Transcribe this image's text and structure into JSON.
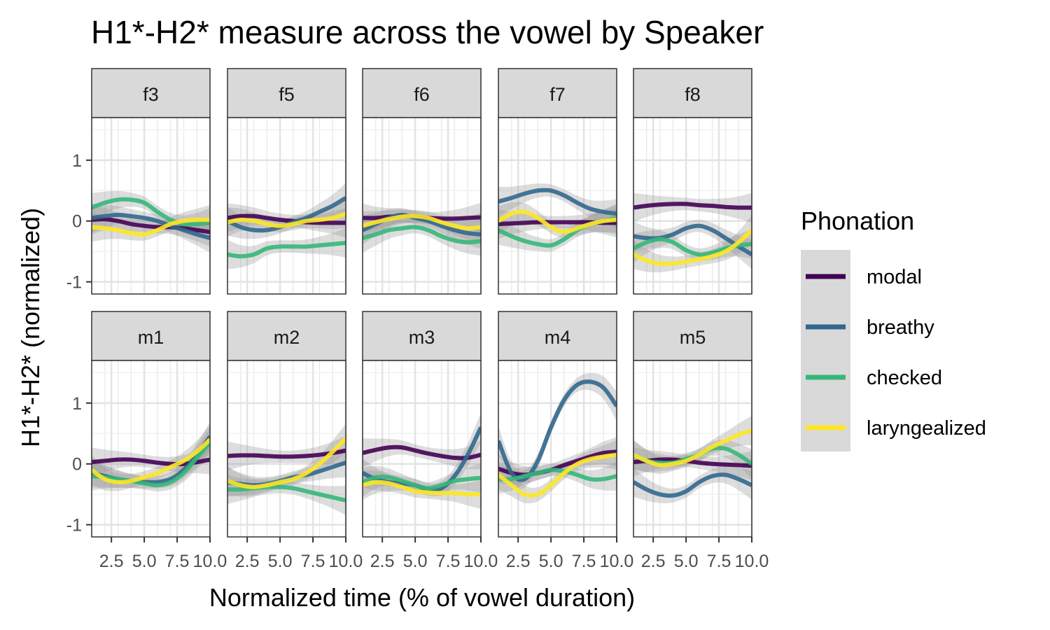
{
  "chart_data": {
    "type": "line",
    "title": "H1*-H2* measure across the vowel by Speaker",
    "xlabel": "Normalized time (% of vowel duration)",
    "ylabel": "H1*-H2* (normalized)",
    "x_ticks": [
      2.5,
      5.0,
      7.5,
      10.0
    ],
    "x_tick_labels": [
      "2.5",
      "5.0",
      "7.5",
      "10.0"
    ],
    "y_ticks": [
      -1,
      0,
      1
    ],
    "y_tick_labels": [
      "-1",
      "0",
      "1"
    ],
    "xlim": [
      1,
      10
    ],
    "ylim": [
      -1.2,
      1.7
    ],
    "grid": true,
    "legend": {
      "title": "Phonation",
      "placement": "right",
      "entries": [
        {
          "name": "modal",
          "color": "#440154"
        },
        {
          "name": "breathy",
          "color": "#31688E"
        },
        {
          "name": "checked",
          "color": "#35B779"
        },
        {
          "name": "laryngealized",
          "color": "#FDE725"
        }
      ]
    },
    "x": [
      1,
      2,
      3,
      4,
      5,
      6,
      7,
      8,
      9,
      10
    ],
    "panels": [
      {
        "speaker": "f3",
        "series": [
          {
            "name": "modal",
            "values": [
              0.02,
              0.03,
              0.0,
              -0.05,
              -0.08,
              -0.1,
              -0.1,
              -0.12,
              -0.15,
              -0.18
            ]
          },
          {
            "name": "breathy",
            "values": [
              0.05,
              0.08,
              0.1,
              0.08,
              0.05,
              0.0,
              -0.08,
              -0.15,
              -0.22,
              -0.28
            ]
          },
          {
            "name": "checked",
            "values": [
              0.22,
              0.3,
              0.35,
              0.35,
              0.3,
              0.15,
              0.02,
              -0.05,
              -0.05,
              -0.03
            ]
          },
          {
            "name": "laryngealized",
            "values": [
              -0.1,
              -0.12,
              -0.15,
              -0.2,
              -0.22,
              -0.15,
              -0.05,
              0.0,
              0.02,
              0.02
            ]
          }
        ]
      },
      {
        "speaker": "f5",
        "series": [
          {
            "name": "modal",
            "values": [
              0.05,
              0.08,
              0.08,
              0.05,
              0.02,
              0.0,
              -0.02,
              -0.03,
              -0.03,
              -0.03
            ]
          },
          {
            "name": "breathy",
            "values": [
              0.0,
              -0.1,
              -0.15,
              -0.15,
              -0.1,
              -0.02,
              0.05,
              0.15,
              0.25,
              0.38
            ]
          },
          {
            "name": "checked",
            "values": [
              -0.55,
              -0.58,
              -0.55,
              -0.45,
              -0.42,
              -0.42,
              -0.42,
              -0.4,
              -0.38,
              -0.36
            ]
          },
          {
            "name": "laryngealized",
            "values": [
              -0.02,
              0.02,
              0.0,
              -0.05,
              -0.08,
              -0.05,
              0.0,
              0.02,
              0.05,
              0.12
            ]
          }
        ]
      },
      {
        "speaker": "f6",
        "series": [
          {
            "name": "modal",
            "values": [
              0.05,
              0.05,
              0.07,
              0.08,
              0.07,
              0.05,
              0.04,
              0.04,
              0.05,
              0.06
            ]
          },
          {
            "name": "breathy",
            "values": [
              -0.15,
              -0.05,
              0.05,
              0.1,
              0.05,
              0.0,
              -0.08,
              -0.15,
              -0.2,
              -0.22
            ]
          },
          {
            "name": "checked",
            "values": [
              -0.28,
              -0.22,
              -0.15,
              -0.12,
              -0.1,
              -0.15,
              -0.25,
              -0.32,
              -0.35,
              -0.33
            ]
          },
          {
            "name": "laryngealized",
            "values": [
              -0.08,
              -0.02,
              0.03,
              0.07,
              0.08,
              0.05,
              -0.02,
              -0.08,
              -0.12,
              -0.1
            ]
          }
        ]
      },
      {
        "speaker": "f7",
        "series": [
          {
            "name": "modal",
            "values": [
              -0.05,
              -0.04,
              -0.03,
              -0.02,
              -0.02,
              -0.02,
              -0.02,
              -0.02,
              -0.03,
              -0.03
            ]
          },
          {
            "name": "breathy",
            "values": [
              0.32,
              0.38,
              0.45,
              0.5,
              0.5,
              0.42,
              0.3,
              0.2,
              0.15,
              0.12
            ]
          },
          {
            "name": "checked",
            "values": [
              -0.15,
              -0.25,
              -0.33,
              -0.38,
              -0.4,
              -0.3,
              -0.15,
              -0.05,
              0.0,
              0.05
            ]
          },
          {
            "name": "laryngealized",
            "values": [
              0.0,
              0.12,
              0.15,
              0.05,
              -0.1,
              -0.18,
              -0.12,
              -0.05,
              0.0,
              0.02
            ]
          }
        ]
      },
      {
        "speaker": "f8",
        "series": [
          {
            "name": "modal",
            "values": [
              0.22,
              0.25,
              0.27,
              0.28,
              0.28,
              0.26,
              0.25,
              0.23,
              0.22,
              0.22
            ]
          },
          {
            "name": "breathy",
            "values": [
              -0.25,
              -0.28,
              -0.28,
              -0.22,
              -0.12,
              -0.08,
              -0.15,
              -0.28,
              -0.42,
              -0.55
            ]
          },
          {
            "name": "checked",
            "values": [
              -0.45,
              -0.35,
              -0.3,
              -0.35,
              -0.48,
              -0.55,
              -0.52,
              -0.45,
              -0.4,
              -0.38
            ]
          },
          {
            "name": "laryngealized",
            "values": [
              -0.55,
              -0.65,
              -0.7,
              -0.7,
              -0.67,
              -0.63,
              -0.58,
              -0.5,
              -0.35,
              -0.15
            ]
          }
        ]
      },
      {
        "speaker": "m1",
        "series": [
          {
            "name": "modal",
            "values": [
              0.03,
              0.05,
              0.07,
              0.07,
              0.05,
              0.02,
              0.0,
              0.0,
              0.03,
              0.07
            ]
          },
          {
            "name": "breathy",
            "values": [
              -0.15,
              -0.2,
              -0.25,
              -0.28,
              -0.3,
              -0.3,
              -0.25,
              -0.1,
              0.15,
              0.45
            ]
          },
          {
            "name": "checked",
            "values": [
              -0.2,
              -0.22,
              -0.25,
              -0.28,
              -0.32,
              -0.35,
              -0.3,
              -0.15,
              0.1,
              0.35
            ]
          },
          {
            "name": "laryngealized",
            "values": [
              -0.1,
              -0.25,
              -0.3,
              -0.28,
              -0.22,
              -0.15,
              -0.05,
              0.05,
              0.2,
              0.4
            ]
          }
        ]
      },
      {
        "speaker": "m2",
        "series": [
          {
            "name": "modal",
            "values": [
              0.13,
              0.14,
              0.14,
              0.13,
              0.12,
              0.12,
              0.13,
              0.15,
              0.18,
              0.22
            ]
          },
          {
            "name": "breathy",
            "values": [
              -0.3,
              -0.33,
              -0.35,
              -0.33,
              -0.28,
              -0.22,
              -0.18,
              -0.12,
              -0.05,
              0.02
            ]
          },
          {
            "name": "checked",
            "values": [
              -0.42,
              -0.42,
              -0.4,
              -0.38,
              -0.38,
              -0.4,
              -0.45,
              -0.5,
              -0.55,
              -0.6
            ]
          },
          {
            "name": "laryngealized",
            "values": [
              -0.28,
              -0.35,
              -0.38,
              -0.35,
              -0.3,
              -0.25,
              -0.15,
              0.0,
              0.2,
              0.42
            ]
          }
        ]
      },
      {
        "speaker": "m3",
        "series": [
          {
            "name": "modal",
            "values": [
              0.18,
              0.23,
              0.27,
              0.27,
              0.22,
              0.17,
              0.13,
              0.1,
              0.1,
              0.15
            ]
          },
          {
            "name": "breathy",
            "values": [
              -0.15,
              -0.25,
              -0.3,
              -0.32,
              -0.35,
              -0.42,
              -0.4,
              -0.2,
              0.15,
              0.6
            ]
          },
          {
            "name": "checked",
            "values": [
              -0.3,
              -0.22,
              -0.22,
              -0.28,
              -0.35,
              -0.4,
              -0.35,
              -0.28,
              -0.25,
              -0.23
            ]
          },
          {
            "name": "laryngealized",
            "values": [
              -0.35,
              -0.3,
              -0.32,
              -0.38,
              -0.45,
              -0.47,
              -0.48,
              -0.48,
              -0.5,
              -0.5
            ]
          }
        ]
      },
      {
        "speaker": "m4",
        "series": [
          {
            "name": "modal",
            "values": [
              -0.08,
              -0.15,
              -0.18,
              -0.15,
              -0.1,
              -0.02,
              0.05,
              0.12,
              0.18,
              0.2
            ]
          },
          {
            "name": "breathy",
            "values": [
              0.38,
              -0.15,
              -0.25,
              0.05,
              0.6,
              1.05,
              1.3,
              1.35,
              1.25,
              0.95
            ]
          },
          {
            "name": "checked",
            "values": [
              -0.25,
              -0.25,
              -0.2,
              -0.15,
              -0.1,
              -0.12,
              -0.18,
              -0.25,
              -0.25,
              -0.2
            ]
          },
          {
            "name": "laryngealized",
            "values": [
              -0.18,
              -0.35,
              -0.5,
              -0.5,
              -0.35,
              -0.15,
              0.0,
              0.08,
              0.12,
              0.15
            ]
          }
        ]
      },
      {
        "speaker": "m5",
        "series": [
          {
            "name": "modal",
            "values": [
              0.03,
              0.05,
              0.07,
              0.07,
              0.05,
              0.02,
              0.0,
              -0.01,
              -0.02,
              -0.03
            ]
          },
          {
            "name": "breathy",
            "values": [
              -0.3,
              -0.42,
              -0.5,
              -0.52,
              -0.45,
              -0.3,
              -0.2,
              -0.18,
              -0.25,
              -0.35
            ]
          },
          {
            "name": "checked",
            "values": [
              0.15,
              0.05,
              0.02,
              0.02,
              0.08,
              0.15,
              0.25,
              0.25,
              0.15,
              0.0
            ]
          },
          {
            "name": "laryngealized",
            "values": [
              0.15,
              0.05,
              -0.02,
              0.0,
              0.05,
              0.15,
              0.28,
              0.38,
              0.48,
              0.55
            ]
          }
        ]
      }
    ]
  }
}
